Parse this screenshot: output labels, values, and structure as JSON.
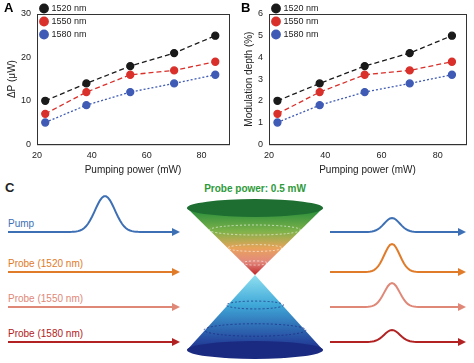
{
  "chart_data": [
    {
      "type": "line",
      "panel": "A",
      "x_label": "Pumping power (mW)",
      "y_label": "ΔP (μW)",
      "xlim": [
        20,
        90
      ],
      "xticks": [
        20,
        40,
        60,
        80
      ],
      "ylim": [
        0,
        30
      ],
      "yticks": [
        0,
        10,
        20,
        30
      ],
      "legend": "upper left",
      "x": [
        23,
        38,
        54,
        70,
        85
      ],
      "series": [
        {
          "name": "1520 nm",
          "color": "#1a1a1a",
          "values": [
            10,
            14,
            18,
            21,
            25
          ],
          "marker": "circle",
          "line_style": "dashed"
        },
        {
          "name": "1550 nm",
          "color": "#d9302b",
          "values": [
            7,
            12,
            16,
            17,
            19
          ],
          "marker": "circle",
          "line_style": "dashed"
        },
        {
          "name": "1580 nm",
          "color": "#3f5bb5",
          "values": [
            5,
            9,
            12,
            14,
            16
          ],
          "marker": "circle",
          "line_style": "dotted"
        }
      ]
    },
    {
      "type": "line",
      "panel": "B",
      "x_label": "Pumping power (mW)",
      "y_label": "Modulation depth (%)",
      "xlim": [
        20,
        90
      ],
      "xticks": [
        20,
        40,
        60,
        80
      ],
      "ylim": [
        0,
        6
      ],
      "yticks": [
        0,
        1,
        2,
        3,
        4,
        5,
        6
      ],
      "legend": "upper left",
      "x": [
        23,
        38,
        54,
        70,
        85
      ],
      "series": [
        {
          "name": "1520 nm",
          "color": "#1a1a1a",
          "values": [
            2.0,
            2.8,
            3.6,
            4.2,
            5.0
          ],
          "marker": "circle",
          "line_style": "dashed"
        },
        {
          "name": "1550 nm",
          "color": "#d9302b",
          "values": [
            1.4,
            2.4,
            3.2,
            3.4,
            3.8
          ],
          "marker": "circle",
          "line_style": "dashed"
        },
        {
          "name": "1580 nm",
          "color": "#3f5bb5",
          "values": [
            1.0,
            1.8,
            2.4,
            2.8,
            3.2
          ],
          "marker": "circle",
          "line_style": "dotted"
        }
      ]
    }
  ],
  "diagram": {
    "panel": "C",
    "title": "Probe power: 0.5 mW",
    "title_color": "#2e9a3a",
    "beams": [
      {
        "label": "Pump",
        "color": "#3d6fb5"
      },
      {
        "label": "Probe (1520 nm)",
        "color": "#e07b2a"
      },
      {
        "label": "Probe (1550 nm)",
        "color": "#e08878"
      },
      {
        "label": "Probe (1580 nm)",
        "color": "#b22222"
      }
    ]
  }
}
